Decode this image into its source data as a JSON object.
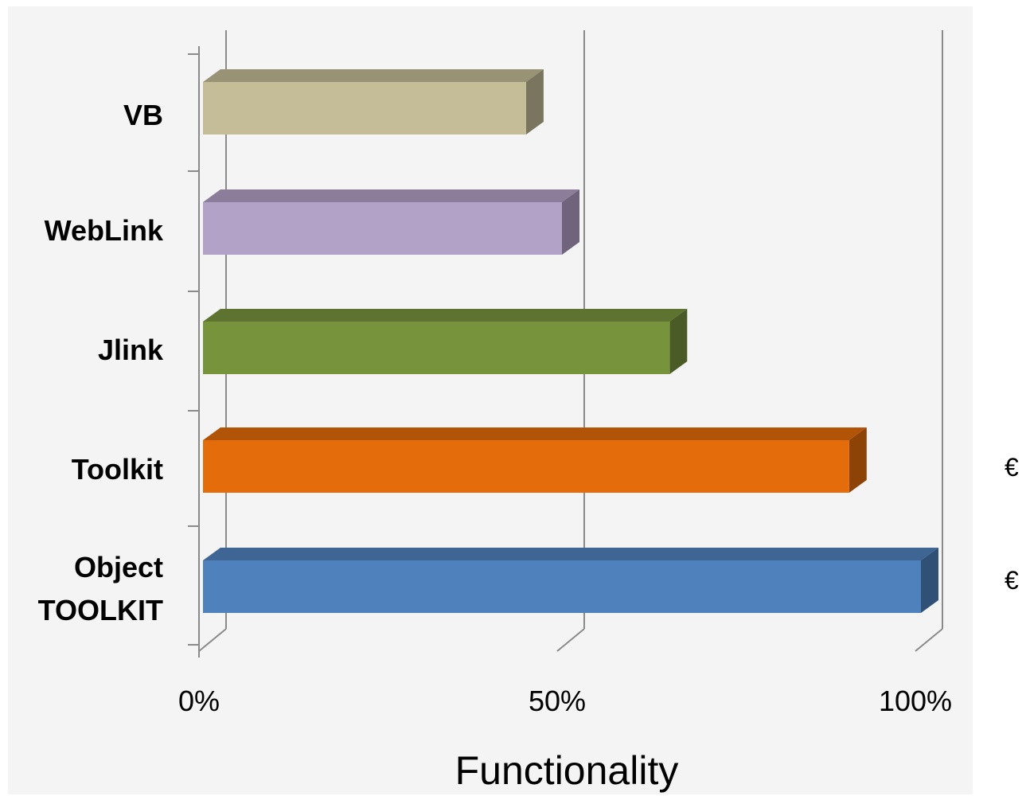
{
  "chart_data": {
    "type": "bar",
    "orientation": "horizontal",
    "style": "3d",
    "categories": [
      "VB",
      "WebLink",
      "Jlink",
      "Toolkit",
      "Object TOOLKIT"
    ],
    "category_lines": [
      [
        "VB"
      ],
      [
        "WebLink"
      ],
      [
        "Jlink"
      ],
      [
        "Toolkit"
      ],
      [
        "Object",
        "TOOLKIT"
      ]
    ],
    "values": [
      45,
      50,
      65,
      90,
      100
    ],
    "colors": [
      "#c4bd97",
      "#b3a2c7",
      "#77933c",
      "#e46c0a",
      "#4f81bd"
    ],
    "xlim": [
      0,
      100
    ],
    "x_ticks": [
      0,
      50,
      100
    ],
    "x_tick_labels": [
      "0%",
      "50%",
      "100%"
    ],
    "xlabel": "Functionality",
    "ylabel": "",
    "grid": "vertical",
    "legend": "none",
    "plot_background": "#f4f4f4"
  },
  "side_marks": [
    "€",
    "€"
  ]
}
